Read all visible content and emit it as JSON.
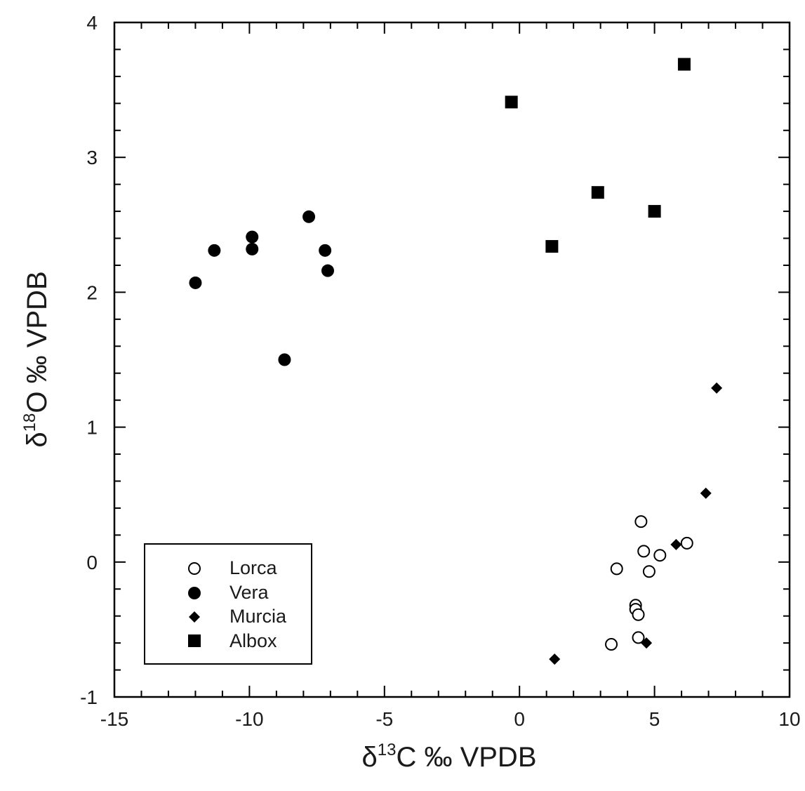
{
  "chart_data": {
    "type": "scatter",
    "title": "",
    "xlabel": {
      "prefix": "δ",
      "sup": "13",
      "suffix": "C ‰ VPDB"
    },
    "ylabel": {
      "prefix": "δ",
      "sup": "18",
      "suffix": "O ‰ VPDB"
    },
    "xlim": [
      -15,
      10
    ],
    "ylim": [
      -1,
      4
    ],
    "xticks": [
      -15,
      -10,
      -5,
      0,
      5,
      10
    ],
    "yticks": [
      -1,
      0,
      1,
      2,
      3,
      4
    ],
    "xminor": 1,
    "yminor": 0.2,
    "grid": false,
    "legend_position": "bottom-left",
    "series": [
      {
        "name": "Lorca",
        "marker": "open-circle",
        "color": "#000000",
        "points": [
          [
            4.5,
            0.3
          ],
          [
            4.6,
            0.08
          ],
          [
            6.2,
            0.14
          ],
          [
            5.2,
            0.05
          ],
          [
            3.6,
            -0.05
          ],
          [
            4.8,
            -0.07
          ],
          [
            4.3,
            -0.32
          ],
          [
            4.3,
            -0.35
          ],
          [
            4.4,
            -0.39
          ],
          [
            4.4,
            -0.56
          ],
          [
            3.4,
            -0.61
          ]
        ]
      },
      {
        "name": "Vera",
        "marker": "filled-circle",
        "color": "#000000",
        "points": [
          [
            -12.0,
            2.07
          ],
          [
            -11.3,
            2.31
          ],
          [
            -9.9,
            2.41
          ],
          [
            -9.9,
            2.32
          ],
          [
            -7.8,
            2.56
          ],
          [
            -7.2,
            2.31
          ],
          [
            -7.1,
            2.16
          ],
          [
            -8.7,
            1.5
          ]
        ]
      },
      {
        "name": "Murcia",
        "marker": "filled-diamond",
        "color": "#000000",
        "points": [
          [
            7.3,
            1.29
          ],
          [
            6.9,
            0.51
          ],
          [
            5.8,
            0.13
          ],
          [
            4.7,
            -0.6
          ],
          [
            1.3,
            -0.72
          ]
        ]
      },
      {
        "name": "Albox",
        "marker": "filled-square",
        "color": "#000000",
        "points": [
          [
            -0.3,
            3.41
          ],
          [
            6.1,
            3.69
          ],
          [
            2.9,
            2.74
          ],
          [
            5.0,
            2.6
          ],
          [
            1.2,
            2.34
          ]
        ]
      }
    ]
  }
}
